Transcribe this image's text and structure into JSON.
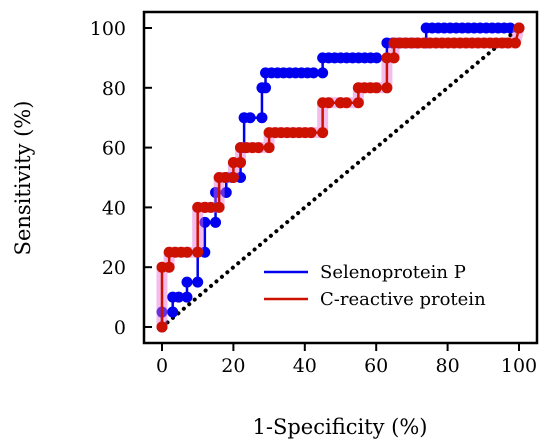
{
  "chart_data": {
    "type": "line",
    "xlabel": "1-Specificity (%)",
    "ylabel": "Sensitivity (%)",
    "xlim": [
      0,
      100
    ],
    "ylim": [
      0,
      100
    ],
    "xticks": [
      "0",
      "20",
      "40",
      "60",
      "80",
      "100"
    ],
    "yticks": [
      "0",
      "20",
      "40",
      "60",
      "80",
      "100"
    ],
    "legend_position": "bottom-right",
    "reference_line": {
      "x": [
        0,
        100
      ],
      "y": [
        0,
        100
      ],
      "style": "dotted",
      "color": "#000000"
    },
    "series": [
      {
        "name": "Selenoprotein P",
        "color": "#0000ee",
        "x": [
          0,
          0,
          3,
          3,
          7,
          7,
          10,
          10,
          12,
          12,
          15,
          15,
          18,
          18,
          22,
          22,
          23,
          23,
          28,
          28,
          29,
          29,
          45,
          45,
          63,
          63,
          74,
          74,
          100
        ],
        "y": [
          0,
          5,
          5,
          10,
          10,
          15,
          15,
          25,
          25,
          35,
          35,
          45,
          45,
          50,
          50,
          60,
          60,
          70,
          70,
          80,
          80,
          85,
          85,
          90,
          90,
          95,
          95,
          100,
          100
        ]
      },
      {
        "name": "C-reactive protein",
        "color": "#cc1100",
        "x": [
          0,
          0,
          2,
          2,
          10,
          10,
          12,
          12,
          16,
          16,
          20,
          20,
          22,
          22,
          30,
          30,
          45,
          45,
          50,
          50,
          55,
          55,
          63,
          63,
          65,
          65,
          99,
          100
        ],
        "y": [
          0,
          20,
          20,
          25,
          25,
          40,
          40,
          40,
          40,
          50,
          50,
          55,
          55,
          60,
          60,
          65,
          65,
          75,
          75,
          75,
          75,
          80,
          80,
          90,
          90,
          95,
          95,
          100
        ]
      }
    ]
  }
}
